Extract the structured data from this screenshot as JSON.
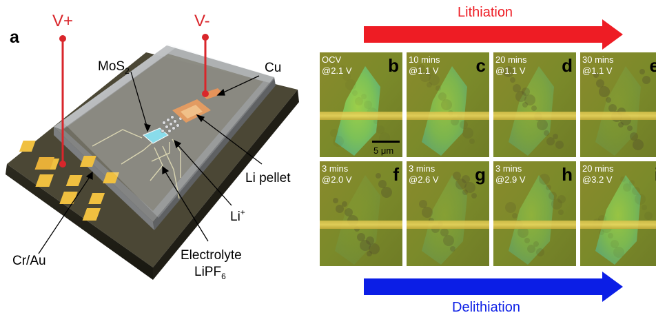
{
  "panel_a": {
    "letter": "a",
    "v_plus": "V+",
    "v_minus": "V-",
    "mos2": "MoS",
    "mos2_sub": "2",
    "cu": "Cu",
    "li_pellet": "Li pellet",
    "li_ion": "Li",
    "li_ion_sup": "+",
    "cr_au": "Cr/Au",
    "electrolyte": "Electrolyte",
    "lipf": "LiPF",
    "lipf_sub": "6"
  },
  "colors": {
    "red_arrow": "#ee1c24",
    "blue_arrow": "#0b1ee6",
    "wire": "#d9262b",
    "substrate_top": "#4a4634",
    "frame_tile_bg": "#7f8a2a"
  },
  "arrows": {
    "lithiation": "Lithiation",
    "delithiation": "Delithiation"
  },
  "scalebar": "5 μm",
  "tiles": [
    {
      "letter": "b",
      "line1": "OCV",
      "line2": "@2.1 V"
    },
    {
      "letter": "c",
      "line1": "10 mins",
      "line2": "@1.1 V"
    },
    {
      "letter": "d",
      "line1": "20 mins",
      "line2": "@1.1 V"
    },
    {
      "letter": "e",
      "line1": "30 mins",
      "line2": "@1.1 V"
    },
    {
      "letter": "f",
      "line1": "3 mins",
      "line2": "@2.0 V"
    },
    {
      "letter": "g",
      "line1": "3 mins",
      "line2": "@2.6 V"
    },
    {
      "letter": "h",
      "line1": "3 mins",
      "line2": "@2.9 V"
    },
    {
      "letter": "i",
      "line1": "20 mins",
      "line2": "@3.2 V"
    }
  ]
}
